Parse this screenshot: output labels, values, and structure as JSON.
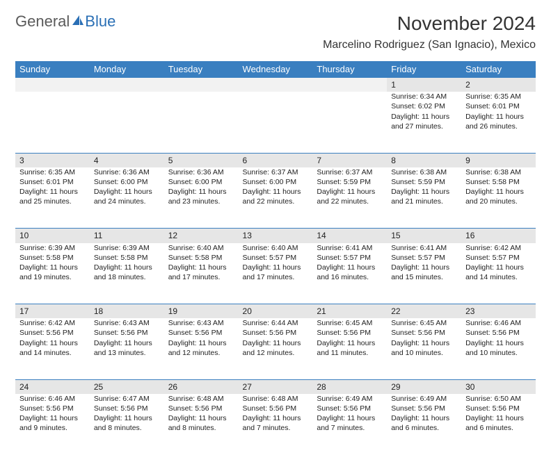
{
  "logo": {
    "word1": "General",
    "word2": "Blue"
  },
  "title": "November 2024",
  "location": "Marcelino Rodriguez (San Ignacio), Mexico",
  "header_bg": "#3a7fc0",
  "header_fg": "#ffffff",
  "daynum_bg": "#e6e6e6",
  "blank_bg": "#f2f2f2",
  "border_color": "#3a7fc0",
  "weekdays": [
    "Sunday",
    "Monday",
    "Tuesday",
    "Wednesday",
    "Thursday",
    "Friday",
    "Saturday"
  ],
  "weeks": [
    [
      null,
      null,
      null,
      null,
      null,
      {
        "n": "1",
        "sr": "Sunrise: 6:34 AM",
        "ss": "Sunset: 6:02 PM",
        "dl": "Daylight: 11 hours and 27 minutes."
      },
      {
        "n": "2",
        "sr": "Sunrise: 6:35 AM",
        "ss": "Sunset: 6:01 PM",
        "dl": "Daylight: 11 hours and 26 minutes."
      }
    ],
    [
      {
        "n": "3",
        "sr": "Sunrise: 6:35 AM",
        "ss": "Sunset: 6:01 PM",
        "dl": "Daylight: 11 hours and 25 minutes."
      },
      {
        "n": "4",
        "sr": "Sunrise: 6:36 AM",
        "ss": "Sunset: 6:00 PM",
        "dl": "Daylight: 11 hours and 24 minutes."
      },
      {
        "n": "5",
        "sr": "Sunrise: 6:36 AM",
        "ss": "Sunset: 6:00 PM",
        "dl": "Daylight: 11 hours and 23 minutes."
      },
      {
        "n": "6",
        "sr": "Sunrise: 6:37 AM",
        "ss": "Sunset: 6:00 PM",
        "dl": "Daylight: 11 hours and 22 minutes."
      },
      {
        "n": "7",
        "sr": "Sunrise: 6:37 AM",
        "ss": "Sunset: 5:59 PM",
        "dl": "Daylight: 11 hours and 22 minutes."
      },
      {
        "n": "8",
        "sr": "Sunrise: 6:38 AM",
        "ss": "Sunset: 5:59 PM",
        "dl": "Daylight: 11 hours and 21 minutes."
      },
      {
        "n": "9",
        "sr": "Sunrise: 6:38 AM",
        "ss": "Sunset: 5:58 PM",
        "dl": "Daylight: 11 hours and 20 minutes."
      }
    ],
    [
      {
        "n": "10",
        "sr": "Sunrise: 6:39 AM",
        "ss": "Sunset: 5:58 PM",
        "dl": "Daylight: 11 hours and 19 minutes."
      },
      {
        "n": "11",
        "sr": "Sunrise: 6:39 AM",
        "ss": "Sunset: 5:58 PM",
        "dl": "Daylight: 11 hours and 18 minutes."
      },
      {
        "n": "12",
        "sr": "Sunrise: 6:40 AM",
        "ss": "Sunset: 5:58 PM",
        "dl": "Daylight: 11 hours and 17 minutes."
      },
      {
        "n": "13",
        "sr": "Sunrise: 6:40 AM",
        "ss": "Sunset: 5:57 PM",
        "dl": "Daylight: 11 hours and 17 minutes."
      },
      {
        "n": "14",
        "sr": "Sunrise: 6:41 AM",
        "ss": "Sunset: 5:57 PM",
        "dl": "Daylight: 11 hours and 16 minutes."
      },
      {
        "n": "15",
        "sr": "Sunrise: 6:41 AM",
        "ss": "Sunset: 5:57 PM",
        "dl": "Daylight: 11 hours and 15 minutes."
      },
      {
        "n": "16",
        "sr": "Sunrise: 6:42 AM",
        "ss": "Sunset: 5:57 PM",
        "dl": "Daylight: 11 hours and 14 minutes."
      }
    ],
    [
      {
        "n": "17",
        "sr": "Sunrise: 6:42 AM",
        "ss": "Sunset: 5:56 PM",
        "dl": "Daylight: 11 hours and 14 minutes."
      },
      {
        "n": "18",
        "sr": "Sunrise: 6:43 AM",
        "ss": "Sunset: 5:56 PM",
        "dl": "Daylight: 11 hours and 13 minutes."
      },
      {
        "n": "19",
        "sr": "Sunrise: 6:43 AM",
        "ss": "Sunset: 5:56 PM",
        "dl": "Daylight: 11 hours and 12 minutes."
      },
      {
        "n": "20",
        "sr": "Sunrise: 6:44 AM",
        "ss": "Sunset: 5:56 PM",
        "dl": "Daylight: 11 hours and 12 minutes."
      },
      {
        "n": "21",
        "sr": "Sunrise: 6:45 AM",
        "ss": "Sunset: 5:56 PM",
        "dl": "Daylight: 11 hours and 11 minutes."
      },
      {
        "n": "22",
        "sr": "Sunrise: 6:45 AM",
        "ss": "Sunset: 5:56 PM",
        "dl": "Daylight: 11 hours and 10 minutes."
      },
      {
        "n": "23",
        "sr": "Sunrise: 6:46 AM",
        "ss": "Sunset: 5:56 PM",
        "dl": "Daylight: 11 hours and 10 minutes."
      }
    ],
    [
      {
        "n": "24",
        "sr": "Sunrise: 6:46 AM",
        "ss": "Sunset: 5:56 PM",
        "dl": "Daylight: 11 hours and 9 minutes."
      },
      {
        "n": "25",
        "sr": "Sunrise: 6:47 AM",
        "ss": "Sunset: 5:56 PM",
        "dl": "Daylight: 11 hours and 8 minutes."
      },
      {
        "n": "26",
        "sr": "Sunrise: 6:48 AM",
        "ss": "Sunset: 5:56 PM",
        "dl": "Daylight: 11 hours and 8 minutes."
      },
      {
        "n": "27",
        "sr": "Sunrise: 6:48 AM",
        "ss": "Sunset: 5:56 PM",
        "dl": "Daylight: 11 hours and 7 minutes."
      },
      {
        "n": "28",
        "sr": "Sunrise: 6:49 AM",
        "ss": "Sunset: 5:56 PM",
        "dl": "Daylight: 11 hours and 7 minutes."
      },
      {
        "n": "29",
        "sr": "Sunrise: 6:49 AM",
        "ss": "Sunset: 5:56 PM",
        "dl": "Daylight: 11 hours and 6 minutes."
      },
      {
        "n": "30",
        "sr": "Sunrise: 6:50 AM",
        "ss": "Sunset: 5:56 PM",
        "dl": "Daylight: 11 hours and 6 minutes."
      }
    ]
  ]
}
